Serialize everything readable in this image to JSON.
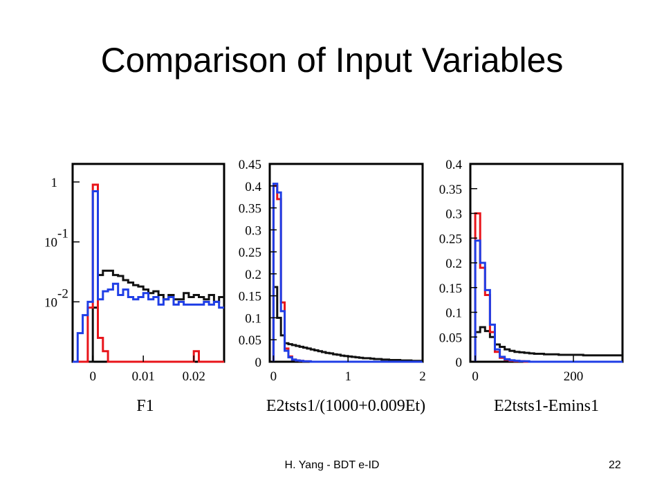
{
  "slide": {
    "title": "Comparison of Input Variables",
    "footer": "H. Yang - BDT e-ID",
    "page_number": "22"
  },
  "series_colors": [
    "#e8141a",
    "#1f3ee6",
    "#111111"
  ],
  "chart_data": [
    {
      "type": "line",
      "step": true,
      "xlabel": "F1",
      "xlim": [
        -0.004,
        0.026
      ],
      "xticks": [
        0,
        0.01,
        0.02
      ],
      "xtick_labels": [
        "0",
        "0.01",
        "0.02"
      ],
      "yscale": "log",
      "ylim": [
        0.001,
        2
      ],
      "ytick_labels": [
        {
          "value": 1,
          "base": "1",
          "exp": ""
        },
        {
          "value": 0.1,
          "base": "10",
          "exp": "-1"
        },
        {
          "value": 0.01,
          "base": "10",
          "exp": "-2"
        }
      ],
      "grid": false,
      "bin_edges": [
        -0.004,
        -0.003,
        -0.002,
        -0.001,
        0,
        0.001,
        0.002,
        0.003,
        0.004,
        0.005,
        0.006,
        0.007,
        0.008,
        0.009,
        0.01,
        0.011,
        0.012,
        0.013,
        0.014,
        0.015,
        0.016,
        0.017,
        0.018,
        0.019,
        0.02,
        0.021,
        0.022,
        0.023,
        0.024,
        0.025,
        0.026
      ],
      "series": [
        {
          "values": [
            0,
            0,
            0,
            0.008,
            0.9,
            0.0025,
            0.0015,
            0,
            0,
            0,
            0,
            0,
            0,
            0,
            0,
            0,
            0,
            0,
            0,
            0,
            0,
            0,
            0,
            0,
            0.0015,
            0,
            0,
            0,
            0,
            0
          ]
        },
        {
          "values": [
            0,
            0.003,
            0.006,
            0.01,
            0.7,
            0.011,
            0.015,
            0.016,
            0.02,
            0.013,
            0.016,
            0.012,
            0.011,
            0.012,
            0.014,
            0.011,
            0.012,
            0.009,
            0.011,
            0.012,
            0.009,
            0.01,
            0.009,
            0.009,
            0.009,
            0.009,
            0.01,
            0.009,
            0.01,
            0.008
          ]
        },
        {
          "values": [
            0,
            0,
            0,
            0,
            0.008,
            0.028,
            0.033,
            0.033,
            0.028,
            0.027,
            0.023,
            0.021,
            0.019,
            0.018,
            0.016,
            0.014,
            0.015,
            0.013,
            0.011,
            0.013,
            0.011,
            0.011,
            0.014,
            0.012,
            0.013,
            0.012,
            0.011,
            0.013,
            0.01,
            0.012
          ]
        }
      ]
    },
    {
      "type": "line",
      "step": true,
      "xlabel": "E2tsts1/(1000+0.009Et)",
      "xlim": [
        -0.05,
        2
      ],
      "xticks": [
        0,
        1,
        2
      ],
      "xtick_labels": [
        "0",
        "1",
        "2"
      ],
      "ylim": [
        0,
        0.45
      ],
      "yticks": [
        0,
        0.05,
        0.1,
        0.15,
        0.2,
        0.25,
        0.3,
        0.35,
        0.4,
        0.45
      ],
      "ytick_labels": [
        "0",
        "0.05",
        "0.1",
        "0.15",
        "0.2",
        "0.25",
        "0.3",
        "0.35",
        "0.4",
        "0.45"
      ],
      "grid": false,
      "bin_width": 0.05,
      "bin_start": 0,
      "series": [
        {
          "values": [
            0.4,
            0.37,
            0.135,
            0.03,
            0.012,
            0.005,
            0.003,
            0.002,
            0.001,
            0.001,
            0,
            0,
            0,
            0,
            0,
            0,
            0,
            0,
            0,
            0,
            0,
            0,
            0,
            0,
            0,
            0,
            0,
            0,
            0,
            0,
            0,
            0,
            0,
            0,
            0,
            0,
            0,
            0,
            0,
            0
          ]
        },
        {
          "values": [
            0.405,
            0.385,
            0.115,
            0.025,
            0.01,
            0.005,
            0.003,
            0.002,
            0.001,
            0.001,
            0,
            0,
            0,
            0,
            0,
            0,
            0,
            0,
            0,
            0,
            0,
            0,
            0,
            0,
            0,
            0,
            0,
            0,
            0,
            0,
            0,
            0,
            0,
            0,
            0,
            0,
            0,
            0,
            0,
            0
          ]
        },
        {
          "values": [
            0.17,
            0.1,
            0.06,
            0.042,
            0.04,
            0.038,
            0.036,
            0.034,
            0.032,
            0.03,
            0.028,
            0.026,
            0.024,
            0.022,
            0.02,
            0.019,
            0.017,
            0.016,
            0.014,
            0.013,
            0.012,
            0.011,
            0.01,
            0.009,
            0.008,
            0.008,
            0.007,
            0.006,
            0.006,
            0.005,
            0.005,
            0.004,
            0.004,
            0.004,
            0.003,
            0.003,
            0.003,
            0.002,
            0.002,
            0.002
          ]
        }
      ]
    },
    {
      "type": "line",
      "step": true,
      "xlabel": "E2tsts1-Emins1",
      "xlim": [
        -10,
        300
      ],
      "xticks": [
        0,
        200
      ],
      "xtick_labels": [
        "0",
        "200"
      ],
      "ylim": [
        0,
        0.4
      ],
      "yticks": [
        0,
        0.05,
        0.1,
        0.15,
        0.2,
        0.25,
        0.3,
        0.35,
        0.4
      ],
      "ytick_labels": [
        "0",
        "0.05",
        "0.1",
        "0.15",
        "0.2",
        "0.25",
        "0.3",
        "0.35",
        "0.4"
      ],
      "grid": false,
      "bin_width": 10,
      "bin_start": 0,
      "series": [
        {
          "values": [
            0.3,
            0.19,
            0.135,
            0.06,
            0.02,
            0.008,
            0.004,
            0.002,
            0.001,
            0.001,
            0,
            0,
            0,
            0,
            0,
            0,
            0,
            0,
            0,
            0,
            0,
            0,
            0,
            0,
            0,
            0,
            0,
            0,
            0,
            0
          ]
        },
        {
          "values": [
            0.245,
            0.2,
            0.145,
            0.075,
            0.025,
            0.01,
            0.005,
            0.003,
            0.002,
            0.001,
            0.001,
            0,
            0,
            0,
            0,
            0,
            0,
            0,
            0,
            0,
            0,
            0,
            0,
            0,
            0,
            0,
            0,
            0,
            0,
            0
          ]
        },
        {
          "values": [
            0.06,
            0.07,
            0.062,
            0.05,
            0.035,
            0.03,
            0.025,
            0.022,
            0.02,
            0.019,
            0.018,
            0.017,
            0.016,
            0.016,
            0.015,
            0.015,
            0.015,
            0.014,
            0.014,
            0.014,
            0.014,
            0.014,
            0.013,
            0.013,
            0.013,
            0.013,
            0.013,
            0.013,
            0.013,
            0.013
          ]
        }
      ]
    }
  ]
}
